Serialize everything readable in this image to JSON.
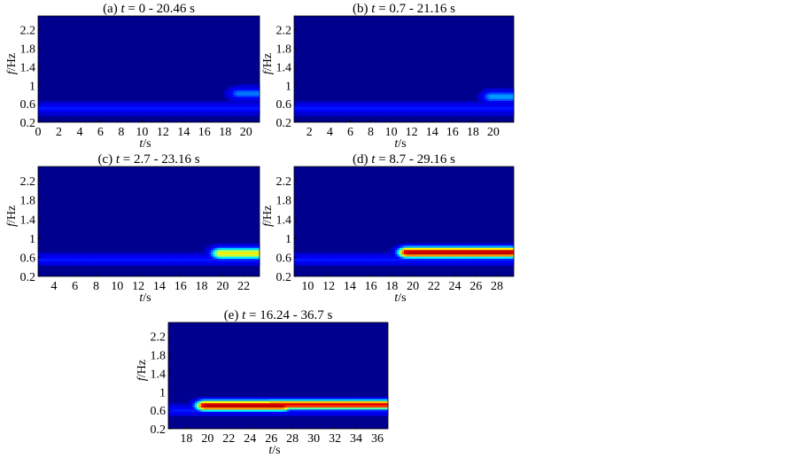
{
  "figure": {
    "colormap": [
      "#00008f",
      "#0000ff",
      "#00ffff",
      "#ffff00",
      "#ff0000",
      "#800000"
    ],
    "background_color": "#00008f"
  },
  "chart_data": [
    {
      "type": "heatmap",
      "title_prefix": "(a) ",
      "title_var": "t",
      "title_rest": " = 0 - 20.46 s",
      "xlabel": "t/s",
      "ylabel": "f/Hz",
      "xlim": [
        0,
        21.3
      ],
      "ylim": [
        0.2,
        2.5
      ],
      "xticks": [
        0,
        2,
        4,
        6,
        8,
        10,
        12,
        14,
        16,
        18,
        20
      ],
      "yticks": [
        0.2,
        0.6,
        1,
        1.4,
        1.8,
        2.2
      ],
      "ytick_labels": [
        "0.2",
        "0.6",
        "1",
        "1.4",
        "1.8",
        "2.2"
      ],
      "hotspots": [
        {
          "t_start": 0,
          "t_end": 21.3,
          "f_center": 0.5,
          "f_spread": 0.1,
          "intensity": 0.22
        },
        {
          "t_start": 19.3,
          "t_end": 21.3,
          "f_center": 0.82,
          "f_spread": 0.12,
          "intensity": 0.3
        }
      ]
    },
    {
      "type": "heatmap",
      "title_prefix": "(b) ",
      "title_var": "t",
      "title_rest": " = 0.7 - 21.16 s",
      "xlabel": "t/s",
      "ylabel": "f/Hz",
      "xlim": [
        0.5,
        22
      ],
      "ylim": [
        0.2,
        2.5
      ],
      "xticks": [
        2,
        4,
        6,
        8,
        10,
        12,
        14,
        16,
        18,
        20
      ],
      "yticks": [
        0.2,
        0.6,
        1,
        1.4,
        1.8,
        2.2
      ],
      "ytick_labels": [
        "0.2",
        "0.6",
        "1",
        "1.4",
        "1.8",
        "2.2"
      ],
      "hotspots": [
        {
          "t_start": 0.5,
          "t_end": 22,
          "f_center": 0.5,
          "f_spread": 0.1,
          "intensity": 0.22
        },
        {
          "t_start": 19.8,
          "t_end": 22,
          "f_center": 0.75,
          "f_spread": 0.12,
          "intensity": 0.33
        }
      ]
    },
    {
      "type": "heatmap",
      "title_prefix": "(c) ",
      "title_var": "t",
      "title_rest": " = 2.7 - 23.16 s",
      "xlabel": "t/s",
      "ylabel": "f/Hz",
      "xlim": [
        2.5,
        23.5
      ],
      "ylim": [
        0.2,
        2.5
      ],
      "xticks": [
        4,
        6,
        8,
        10,
        12,
        14,
        16,
        18,
        20,
        22
      ],
      "yticks": [
        0.2,
        0.6,
        1,
        1.4,
        1.8,
        2.2
      ],
      "ytick_labels": [
        "0.2",
        "0.6",
        "1",
        "1.4",
        "1.8",
        "2.2"
      ],
      "hotspots": [
        {
          "t_start": 2.5,
          "t_end": 23.5,
          "f_center": 0.55,
          "f_spread": 0.1,
          "intensity": 0.22
        },
        {
          "t_start": 19.8,
          "t_end": 23.4,
          "f_center": 0.68,
          "f_spread": 0.12,
          "intensity": 0.62
        }
      ]
    },
    {
      "type": "heatmap",
      "title_prefix": "(d) ",
      "title_var": "t",
      "title_rest": " = 8.7 - 29.16 s",
      "xlabel": "t/s",
      "ylabel": "f/Hz",
      "xlim": [
        8.7,
        29.6
      ],
      "ylim": [
        0.2,
        2.5
      ],
      "xticks": [
        10,
        12,
        14,
        16,
        18,
        20,
        22,
        24,
        26,
        28
      ],
      "yticks": [
        0.2,
        0.6,
        1,
        1.4,
        1.8,
        2.2
      ],
      "ytick_labels": [
        "0.2",
        "0.6",
        "1",
        "1.4",
        "1.8",
        "2.2"
      ],
      "hotspots": [
        {
          "t_start": 8.7,
          "t_end": 29.6,
          "f_center": 0.55,
          "f_spread": 0.1,
          "intensity": 0.22
        },
        {
          "t_start": 19.5,
          "t_end": 29.3,
          "f_center": 0.7,
          "f_spread": 0.11,
          "intensity": 0.92
        }
      ]
    },
    {
      "type": "heatmap",
      "title_prefix": "(e) ",
      "title_var": "t",
      "title_rest": " = 16.24 - 36.7 s",
      "xlabel": "t/s",
      "ylabel": "f/Hz",
      "xlim": [
        16.3,
        37
      ],
      "ylim": [
        0.2,
        2.5
      ],
      "xticks": [
        18,
        20,
        22,
        24,
        26,
        28,
        30,
        32,
        34,
        36
      ],
      "yticks": [
        0.2,
        0.6,
        1,
        1.4,
        1.8,
        2.2
      ],
      "ytick_labels": [
        "0.2",
        "0.6",
        "1",
        "1.4",
        "1.8",
        "2.2"
      ],
      "hotspots": [
        {
          "t_start": 16.3,
          "t_end": 37,
          "f_center": 0.6,
          "f_spread": 0.1,
          "intensity": 0.22
        },
        {
          "t_start": 19.8,
          "t_end": 27,
          "f_center": 0.7,
          "f_spread": 0.11,
          "intensity": 0.92
        },
        {
          "t_start": 26,
          "t_end": 36.8,
          "f_center": 0.72,
          "f_spread": 0.1,
          "intensity": 0.85
        }
      ]
    }
  ]
}
